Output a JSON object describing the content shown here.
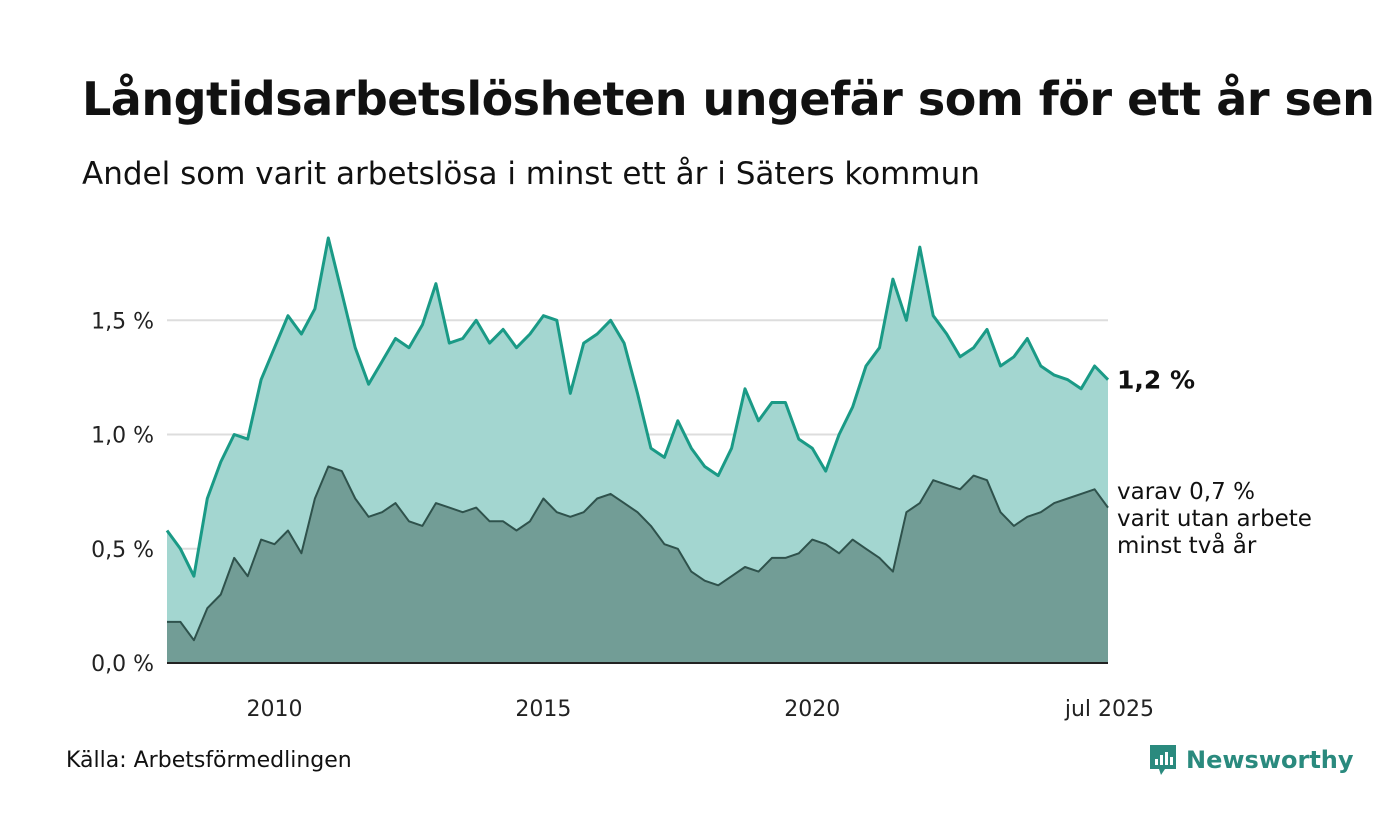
{
  "title": "Långtidsarbetslösheten ungefär som för ett år sen",
  "subtitle": "Andel som varit arbetslösa i minst ett år i Säters kommun",
  "source": "Källa: Arbetsförmedlingen",
  "brand": "Newsworthy",
  "colors": {
    "series1_line": "#1a9a86",
    "series1_fill": "#a3d6d0",
    "series2_line": "#2f524c",
    "series2_fill": "#729d96",
    "grid": "#dddddd",
    "axis": "#222222",
    "brand": "#2a8a7e"
  },
  "chart_data": {
    "type": "area",
    "title": "Långtidsarbetslösheten ungefär som för ett år sen",
    "subtitle": "Andel som varit arbetslösa i minst ett år i Säters kommun",
    "xlabel": "",
    "ylabel": "",
    "ylim": [
      0,
      1.86
    ],
    "xlim": [
      2008.0,
      2025.5
    ],
    "grid": true,
    "yticks": [
      0.0,
      0.5,
      1.0,
      1.5
    ],
    "ytick_labels": [
      "0,0 %",
      "0,5 %",
      "1,0 %",
      "1,5 %"
    ],
    "xticks": [
      2010.0,
      2015.0,
      2020.0,
      2025.5
    ],
    "xtick_labels": [
      "2010",
      "2015",
      "2020",
      "jul 2025"
    ],
    "series": [
      {
        "name": "",
        "end_label": "1,2 %",
        "x": [
          2008.0,
          2008.25,
          2008.5,
          2008.75,
          2009.0,
          2009.25,
          2009.5,
          2009.75,
          2010.0,
          2010.25,
          2010.5,
          2010.75,
          2011.0,
          2011.25,
          2011.5,
          2011.75,
          2012.0,
          2012.25,
          2012.5,
          2012.75,
          2013.0,
          2013.25,
          2013.5,
          2013.75,
          2014.0,
          2014.25,
          2014.5,
          2014.75,
          2015.0,
          2015.25,
          2015.5,
          2015.75,
          2016.0,
          2016.25,
          2016.5,
          2016.75,
          2017.0,
          2017.25,
          2017.5,
          2017.75,
          2018.0,
          2018.25,
          2018.5,
          2018.75,
          2019.0,
          2019.25,
          2019.5,
          2019.75,
          2020.0,
          2020.25,
          2020.5,
          2020.75,
          2021.0,
          2021.25,
          2021.5,
          2021.75,
          2022.0,
          2022.25,
          2022.5,
          2022.75,
          2023.0,
          2023.25,
          2023.5,
          2023.75,
          2024.0,
          2024.25,
          2024.5,
          2024.75,
          2025.0,
          2025.25,
          2025.5
        ],
        "values": [
          0.58,
          0.5,
          0.38,
          0.72,
          0.88,
          1.0,
          0.98,
          1.24,
          1.38,
          1.52,
          1.44,
          1.55,
          1.86,
          1.62,
          1.38,
          1.22,
          1.32,
          1.42,
          1.38,
          1.48,
          1.66,
          1.4,
          1.42,
          1.5,
          1.4,
          1.46,
          1.38,
          1.44,
          1.52,
          1.5,
          1.18,
          1.4,
          1.44,
          1.5,
          1.4,
          1.18,
          0.94,
          0.9,
          1.06,
          0.94,
          0.86,
          0.82,
          0.94,
          1.2,
          1.06,
          1.14,
          1.14,
          0.98,
          0.94,
          0.84,
          1.0,
          1.12,
          1.3,
          1.38,
          1.68,
          1.5,
          1.82,
          1.52,
          1.44,
          1.34,
          1.38,
          1.46,
          1.3,
          1.34,
          1.42,
          1.3,
          1.26,
          1.24,
          1.2,
          1.3,
          1.24
        ]
      },
      {
        "name": "",
        "end_label_lines": [
          "varav 0,7 %",
          "varit utan arbete",
          "minst två år"
        ],
        "x": [
          2008.0,
          2008.25,
          2008.5,
          2008.75,
          2009.0,
          2009.25,
          2009.5,
          2009.75,
          2010.0,
          2010.25,
          2010.5,
          2010.75,
          2011.0,
          2011.25,
          2011.5,
          2011.75,
          2012.0,
          2012.25,
          2012.5,
          2012.75,
          2013.0,
          2013.25,
          2013.5,
          2013.75,
          2014.0,
          2014.25,
          2014.5,
          2014.75,
          2015.0,
          2015.25,
          2015.5,
          2015.75,
          2016.0,
          2016.25,
          2016.5,
          2016.75,
          2017.0,
          2017.25,
          2017.5,
          2017.75,
          2018.0,
          2018.25,
          2018.5,
          2018.75,
          2019.0,
          2019.25,
          2019.5,
          2019.75,
          2020.0,
          2020.25,
          2020.5,
          2020.75,
          2021.0,
          2021.25,
          2021.5,
          2021.75,
          2022.0,
          2022.25,
          2022.5,
          2022.75,
          2023.0,
          2023.25,
          2023.5,
          2023.75,
          2024.0,
          2024.25,
          2024.5,
          2024.75,
          2025.0,
          2025.25,
          2025.5
        ],
        "values": [
          0.18,
          0.18,
          0.1,
          0.24,
          0.3,
          0.46,
          0.38,
          0.54,
          0.52,
          0.58,
          0.48,
          0.72,
          0.86,
          0.84,
          0.72,
          0.64,
          0.66,
          0.7,
          0.62,
          0.6,
          0.7,
          0.68,
          0.66,
          0.68,
          0.62,
          0.62,
          0.58,
          0.62,
          0.72,
          0.66,
          0.64,
          0.66,
          0.72,
          0.74,
          0.7,
          0.66,
          0.6,
          0.52,
          0.5,
          0.4,
          0.36,
          0.34,
          0.38,
          0.42,
          0.4,
          0.46,
          0.46,
          0.48,
          0.54,
          0.52,
          0.48,
          0.54,
          0.5,
          0.46,
          0.4,
          0.66,
          0.7,
          0.8,
          0.78,
          0.76,
          0.82,
          0.8,
          0.66,
          0.6,
          0.64,
          0.66,
          0.7,
          0.72,
          0.74,
          0.76,
          0.68
        ]
      }
    ]
  }
}
